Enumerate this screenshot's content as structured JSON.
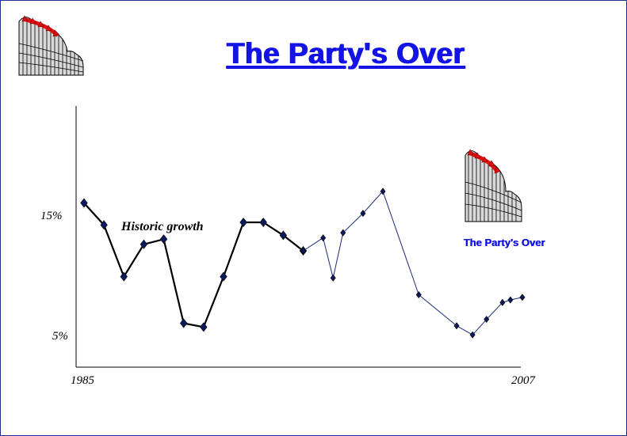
{
  "slide": {
    "title": "The Party's Over",
    "caption": "The Party's Over",
    "logo_icon": "wave-chart-logo-icon"
  },
  "colors": {
    "title_blue": "#1313e6",
    "marker_navy": "#0d1a5c",
    "historic_line": "#000000",
    "recent_line": "#1a2a7a"
  },
  "chart_data": {
    "type": "line",
    "title": "",
    "xlabel": "",
    "ylabel": "",
    "x_tick_labels": [
      "1985",
      "2007"
    ],
    "y_tick_labels": [
      "15%",
      "5%"
    ],
    "xlim": [
      1985,
      2007
    ],
    "ylim": [
      2.3,
      22.5
    ],
    "grid": false,
    "annotation": "Historic growth",
    "series": [
      {
        "segment": "historic",
        "x": [
          1985,
          1986,
          1987,
          1988,
          1989,
          1990,
          1991,
          1992,
          1993,
          1994,
          1995,
          1996,
          1997,
          1998
        ],
        "y": [
          15.0,
          13.3,
          9.3,
          11.8,
          12.2,
          5.7,
          5.4,
          9.3,
          13.5,
          13.5,
          12.5,
          11.3,
          null,
          null
        ]
      },
      {
        "segment": "recent",
        "x": [
          1996,
          1997,
          1997.5,
          1998,
          1999,
          2000,
          2001.8,
          2003.7,
          2004.5,
          2005.2,
          2006,
          2006.4,
          2007
        ],
        "y": [
          11.3,
          12.3,
          9.2,
          12.7,
          14.2,
          15.9,
          7.9,
          5.5,
          4.8,
          6.0,
          7.3,
          7.5,
          7.7
        ]
      }
    ]
  }
}
